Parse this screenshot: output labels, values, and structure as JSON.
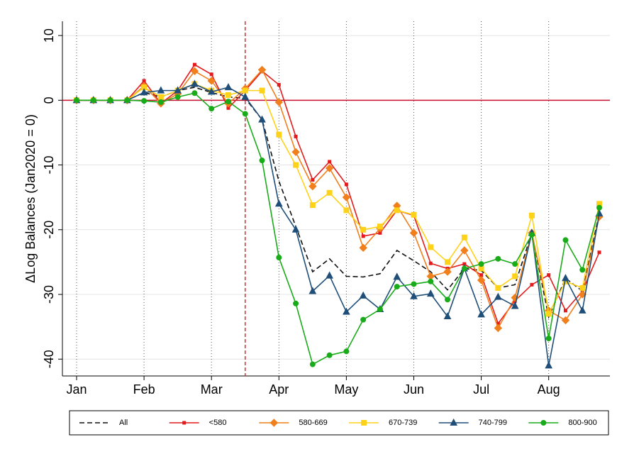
{
  "chart_data": {
    "type": "line",
    "y_label": "ΔLog Balances (Jan2020 = 0)",
    "categories": [
      "Jan",
      null,
      null,
      null,
      "Feb",
      null,
      null,
      null,
      "Mar",
      null,
      null,
      null,
      "Apr",
      null,
      null,
      null,
      "May",
      null,
      null,
      null,
      "Jun",
      null,
      null,
      null,
      "Jul",
      null,
      null,
      null,
      "Aug",
      null,
      null,
      null
    ],
    "ylim": [
      -42.6,
      12.2
    ],
    "yticks": [
      10,
      0,
      -10,
      -20,
      -30,
      -40
    ],
    "grid": true,
    "month_gridlines": true,
    "hline": 0,
    "hline_color": "#c8102e",
    "vline_category": 10,
    "vline_color": "#e8262b",
    "legend": "bottom",
    "series": [
      {
        "name": "All",
        "color": "#111111",
        "line_style": "dashed",
        "values": [
          0,
          0,
          0,
          0,
          1.2,
          0.5,
          1.5,
          2.0,
          1.2,
          0.5,
          0.3,
          -3.0,
          -12.5,
          -19.5,
          -26.5,
          -24.5,
          -27.2,
          -27.3,
          -26.8,
          -23.2,
          -24.8,
          -26.5,
          -29.3,
          -26.0,
          -26.3,
          -29.0,
          -28.5,
          -20.5,
          -33.5,
          -27.5,
          -29.5,
          -17.5
        ]
      },
      {
        "name": "<580",
        "color": "#e41a1c",
        "marker": "cross",
        "values": [
          0,
          0,
          0,
          0,
          3.0,
          -0.5,
          1.5,
          5.5,
          4.0,
          -1.2,
          1.5,
          4.5,
          2.4,
          -5.6,
          -12.3,
          -9.5,
          -13.0,
          -21.0,
          -20.5,
          -17.0,
          -17.8,
          -25.2,
          -26.0,
          -25.3,
          -27.0,
          -34.5,
          -31.0,
          -28.5,
          -27.0,
          -32.5,
          -29.5,
          -23.5
        ]
      },
      {
        "name": "580-669",
        "color": "#f07f1c",
        "marker": "diamond",
        "values": [
          0,
          0,
          0,
          0,
          2.2,
          -0.5,
          1.0,
          4.5,
          3.0,
          -0.5,
          1.8,
          4.7,
          -0.3,
          -8.0,
          -13.3,
          -10.5,
          -15.0,
          -22.8,
          -19.8,
          -16.3,
          -20.5,
          -27.2,
          -26.5,
          -23.2,
          -27.8,
          -35.2,
          -30.5,
          -20.5,
          -32.5,
          -34.0,
          -30.0,
          -18.0
        ]
      },
      {
        "name": "670-739",
        "color": "#ffd21a",
        "marker": "square",
        "values": [
          0,
          0,
          0,
          0,
          2.0,
          0.5,
          1.5,
          2.5,
          1.5,
          0.8,
          1.5,
          1.5,
          -5.3,
          -10.0,
          -16.2,
          -14.3,
          -17.0,
          -20.0,
          -19.5,
          -17.0,
          -17.7,
          -22.7,
          -25.0,
          -21.2,
          -26.0,
          -29.0,
          -27.2,
          -17.8,
          -33.0,
          -28.0,
          -29.0,
          -16.0
        ]
      },
      {
        "name": "740-799",
        "color": "#1f4e79",
        "marker": "triangle",
        "values": [
          0,
          0,
          0,
          0,
          1.2,
          1.5,
          1.5,
          2.5,
          1.3,
          2.0,
          0.5,
          -3.0,
          -16.0,
          -20.0,
          -29.5,
          -27.1,
          -32.7,
          -30.2,
          -32.3,
          -27.3,
          -30.3,
          -29.9,
          -33.4,
          -26.0,
          -33.1,
          -30.4,
          -31.8,
          -20.5,
          -41.0,
          -27.5,
          -32.5,
          -17.5
        ]
      },
      {
        "name": "800-900",
        "color": "#1aab1a",
        "marker": "circle",
        "values": [
          0,
          0,
          0,
          0,
          -0.1,
          -0.3,
          0.5,
          1.1,
          -1.3,
          -0.2,
          -2.1,
          -9.3,
          -24.3,
          -31.4,
          -40.8,
          -39.4,
          -38.8,
          -33.9,
          -32.3,
          -28.8,
          -28.4,
          -28.0,
          -30.8,
          -26.0,
          -25.3,
          -24.5,
          -25.3,
          -20.8,
          -36.8,
          -21.6,
          -26.2,
          -16.6
        ]
      }
    ]
  }
}
